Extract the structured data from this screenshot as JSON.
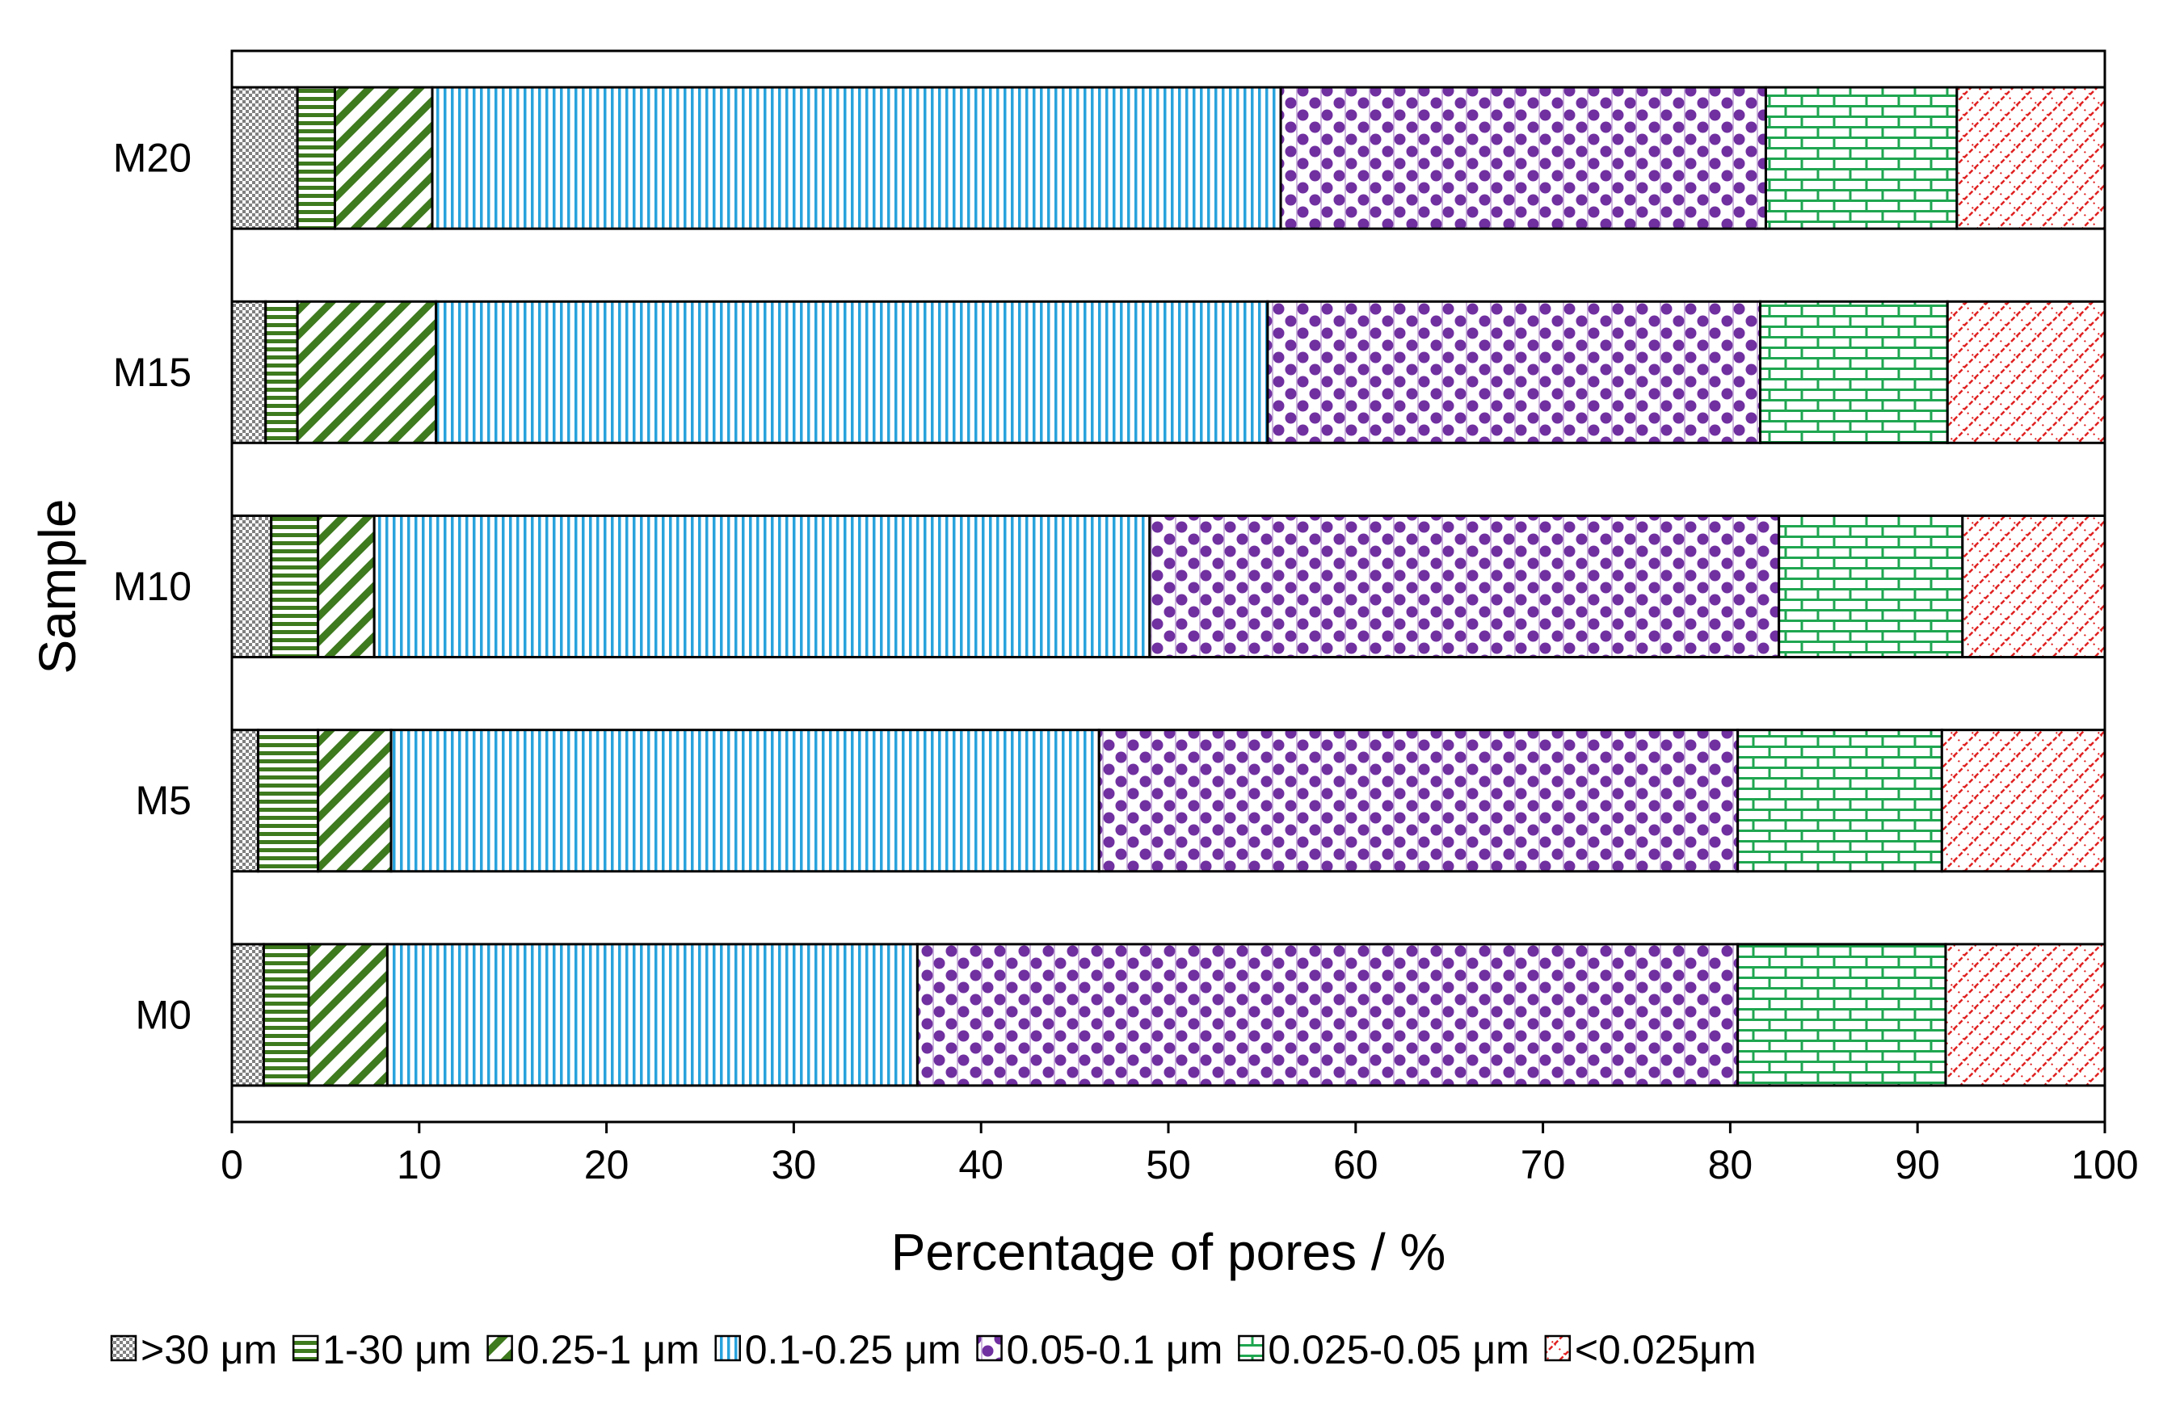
{
  "chart_data": {
    "type": "bar",
    "orientation": "horizontal",
    "stacked": true,
    "title": "",
    "xlabel": "Percentage of pores / %",
    "ylabel": "Sample",
    "xlim": [
      0,
      100
    ],
    "xticks": [
      0,
      10,
      20,
      30,
      40,
      50,
      60,
      70,
      80,
      90,
      100
    ],
    "categories": [
      "M0",
      "M5",
      "M10",
      "M15",
      "M20"
    ],
    "legend_position": "bottom",
    "grid": false,
    "series": [
      {
        "name": ">30 μm",
        "color": "#808080",
        "pattern": "checker",
        "values": [
          1.7,
          1.4,
          2.1,
          1.8,
          3.5
        ]
      },
      {
        "name": "1-30 μm",
        "color": "#3E7A1E",
        "pattern": "hlines",
        "values": [
          2.4,
          3.2,
          2.5,
          1.7,
          2.0
        ]
      },
      {
        "name": "0.25-1 μm",
        "color": "#3E7A1E",
        "pattern": "diagonal",
        "values": [
          4.2,
          3.9,
          3.0,
          7.4,
          5.2
        ]
      },
      {
        "name": "0.1-0.25 μm",
        "color": "#29A3DC",
        "pattern": "vlines",
        "values": [
          28.3,
          37.8,
          41.4,
          44.4,
          45.3
        ]
      },
      {
        "name": "0.05-0.1 μm",
        "color": "#7030A0",
        "pattern": "dots",
        "values": [
          43.8,
          34.1,
          33.6,
          26.3,
          25.9
        ]
      },
      {
        "name": "0.025-0.05 μm",
        "color": "#1FA650",
        "pattern": "brick",
        "values": [
          11.1,
          10.9,
          9.8,
          10.0,
          10.2
        ]
      },
      {
        "name": "<0.025μm",
        "color": "#E02020",
        "pattern": "lattice",
        "values": [
          8.5,
          8.7,
          7.6,
          8.4,
          7.9
        ]
      }
    ]
  }
}
